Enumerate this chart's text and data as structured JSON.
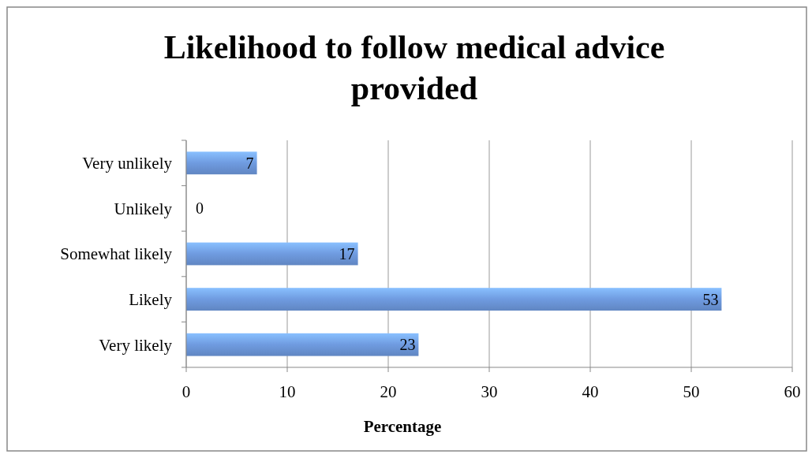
{
  "chart_data": {
    "type": "bar",
    "orientation": "horizontal",
    "title": "Likelihood to follow medical advice provided",
    "xlabel": "Percentage",
    "categories": [
      "Very unlikely",
      "Unlikely",
      "Somewhat likely",
      "Likely",
      "Very likely"
    ],
    "values": [
      7,
      0,
      17,
      53,
      23
    ],
    "color": "#6f9be0",
    "data_labels": true,
    "xlim": [
      0,
      60
    ],
    "xticks": [
      0,
      10,
      20,
      30,
      40,
      50,
      60
    ],
    "grid": "x"
  }
}
